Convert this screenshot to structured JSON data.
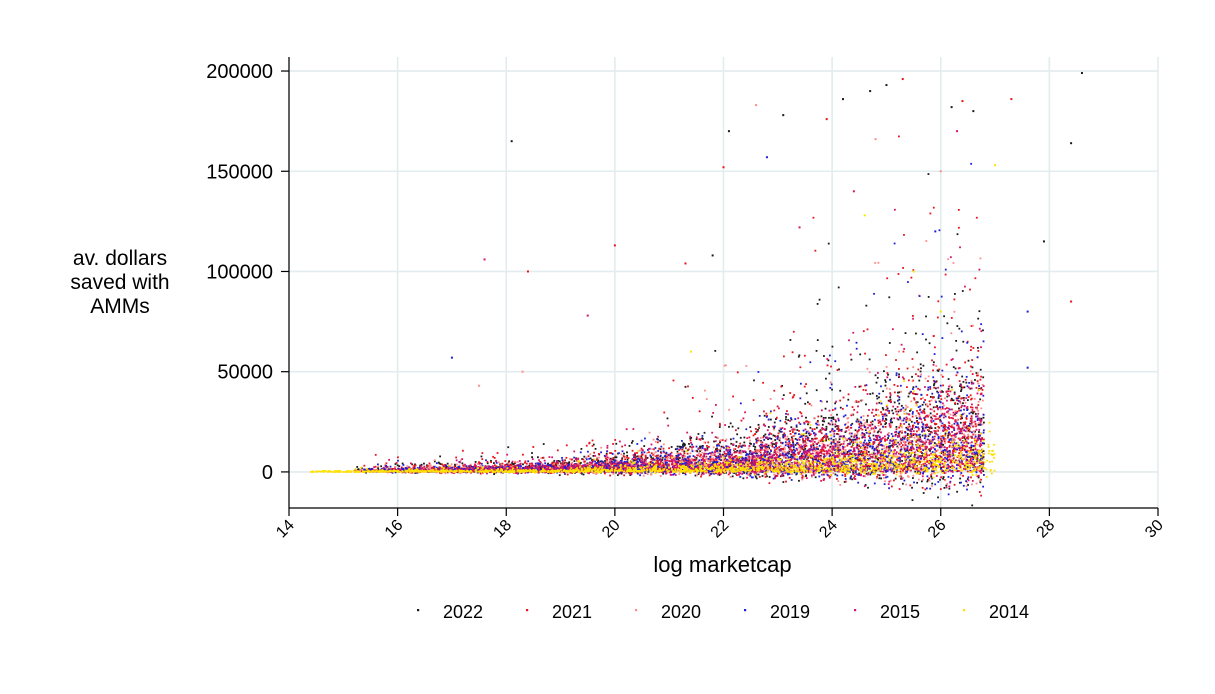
{
  "chart_data": {
    "type": "scatter",
    "title": "",
    "xlabel": "log marketcap",
    "ylabel_lines": [
      "av. dollars",
      "saved with",
      "AMMs"
    ],
    "xlim": [
      14,
      30
    ],
    "ylim": [
      -18000,
      207000
    ],
    "x_ticks": [
      14,
      16,
      18,
      20,
      22,
      24,
      26,
      28,
      30
    ],
    "x_tick_labels": [
      "14",
      "16",
      "18",
      "20",
      "22",
      "24",
      "26",
      "28",
      "30"
    ],
    "y_ticks": [
      0,
      50000,
      100000,
      150000,
      200000
    ],
    "y_tick_labels": [
      "0",
      "50000",
      "100000",
      "150000",
      "200000"
    ],
    "grid": true,
    "legend_position": "bottom",
    "series": [
      {
        "name": "2022",
        "label": "2022",
        "color": "#1a1a1a",
        "outliers": [
          [
            18.1,
            165000
          ],
          [
            22.1,
            170000
          ],
          [
            23.1,
            178000
          ],
          [
            24.2,
            186000
          ],
          [
            25.0,
            193000
          ],
          [
            26.2,
            182000
          ],
          [
            28.6,
            199000
          ],
          [
            28.4,
            164000
          ],
          [
            21.8,
            108000
          ],
          [
            26.6,
            180000
          ],
          [
            24.7,
            190000
          ],
          [
            27.9,
            115000
          ]
        ]
      },
      {
        "name": "2021",
        "label": "2021",
        "color": "#e8141b",
        "outliers": [
          [
            20.0,
            113000
          ],
          [
            22.0,
            152000
          ],
          [
            25.3,
            196000
          ],
          [
            26.4,
            185000
          ],
          [
            27.3,
            186000
          ],
          [
            28.4,
            85000
          ],
          [
            18.4,
            100000
          ],
          [
            21.3,
            104000
          ],
          [
            23.9,
            176000
          ]
        ]
      },
      {
        "name": "2020",
        "label": "2020",
        "color": "#ff8a8a",
        "outliers": [
          [
            17.5,
            43000
          ],
          [
            18.3,
            50000
          ],
          [
            22.6,
            183000
          ],
          [
            24.8,
            166000
          ],
          [
            26.0,
            150000
          ]
        ]
      },
      {
        "name": "2019",
        "label": "2019",
        "color": "#1f1fd6",
        "outliers": [
          [
            17.0,
            57000
          ],
          [
            22.8,
            157000
          ],
          [
            27.6,
            80000
          ],
          [
            27.6,
            52000
          ],
          [
            25.9,
            120000
          ]
        ]
      },
      {
        "name": "2015",
        "label": "2015",
        "color": "#d6146b",
        "outliers": [
          [
            17.6,
            106000
          ],
          [
            24.4,
            140000
          ],
          [
            26.3,
            170000
          ],
          [
            19.5,
            78000
          ],
          [
            23.4,
            122000
          ]
        ]
      },
      {
        "name": "2014",
        "label": "2014",
        "color": "#ffe100",
        "outliers": [
          [
            24.6,
            128000
          ],
          [
            26.0,
            80000
          ],
          [
            21.4,
            60000
          ],
          [
            25.5,
            100000
          ],
          [
            27.0,
            153000
          ]
        ]
      }
    ]
  }
}
